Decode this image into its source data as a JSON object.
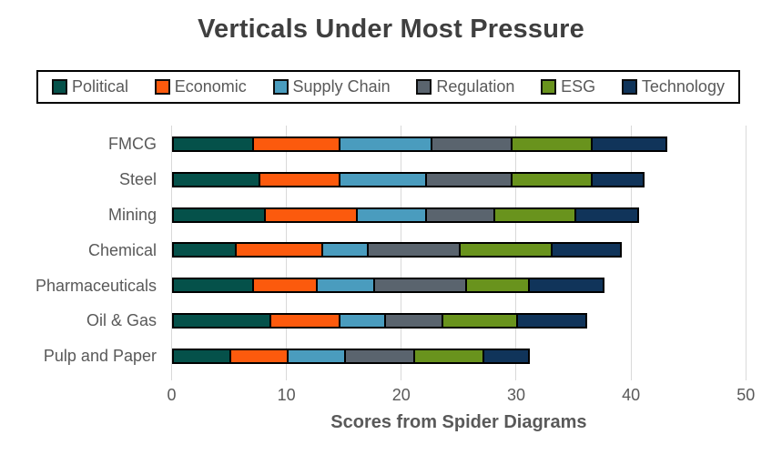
{
  "title": "Verticals Under Most Pressure",
  "chart_data": {
    "type": "bar",
    "orientation": "horizontal",
    "stacked": true,
    "title": "Verticals Under Most Pressure",
    "categories": [
      "FMCG",
      "Steel",
      "Mining",
      "Chemical",
      "Pharmaceuticals",
      "Oil & Gas",
      "Pulp and Paper"
    ],
    "series": [
      {
        "name": "Political",
        "color": "#05514a",
        "values": [
          7,
          7.5,
          8,
          5.5,
          7,
          8.5,
          5
        ]
      },
      {
        "name": "Economic",
        "color": "#fc5a0d",
        "values": [
          7.5,
          7,
          8,
          7.5,
          5.5,
          6,
          5
        ]
      },
      {
        "name": "Supply Chain",
        "color": "#4a9cbe",
        "values": [
          8,
          7.5,
          6,
          4,
          5,
          4,
          5
        ]
      },
      {
        "name": "Regulation",
        "color": "#5a646e",
        "values": [
          7,
          7.5,
          6,
          8,
          8,
          5,
          6
        ]
      },
      {
        "name": "ESG",
        "color": "#69931d",
        "values": [
          7,
          7,
          7,
          8,
          5.5,
          6.5,
          6
        ]
      },
      {
        "name": "Technology",
        "color": "#10345a",
        "values": [
          6.5,
          4.5,
          5.5,
          6,
          6.5,
          6,
          4
        ]
      }
    ],
    "totals": [
      43,
      41,
      40.5,
      39,
      37.5,
      36,
      31
    ],
    "xlabel": "Scores from Spider Diagrams",
    "x_ticks": [
      0,
      10,
      20,
      30,
      40,
      50
    ],
    "xlim": [
      0,
      50
    ],
    "grid": "vertical-gridlines",
    "legend_position": "top",
    "bar_border_color": "#000000"
  },
  "colors": {
    "title_text": "#3f3f3f",
    "axis_text": "#595959",
    "gridline": "#d9d9d9",
    "legend_border": "#000000",
    "background": "#ffffff"
  }
}
